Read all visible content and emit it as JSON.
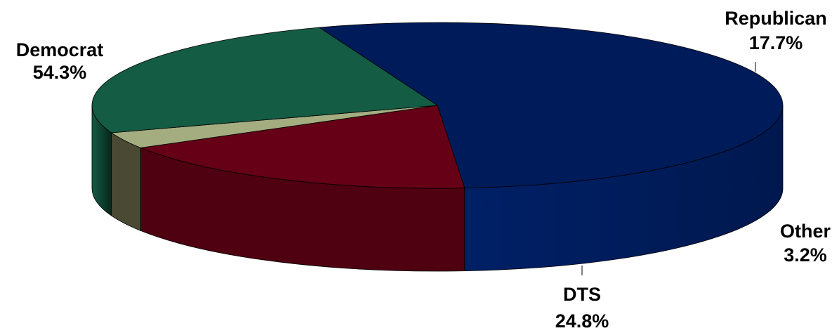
{
  "chart_data": {
    "type": "pie",
    "style": "3d",
    "slices": [
      {
        "label": "Democrat",
        "value": 54.3,
        "value_label": "54.3%",
        "color": "#001b59"
      },
      {
        "label": "Republican",
        "value": 17.7,
        "value_label": "17.7%",
        "color": "#650016"
      },
      {
        "label": "Other",
        "value": 3.2,
        "value_label": "3.2%",
        "color": "#a3ad80"
      },
      {
        "label": "DTS",
        "value": 24.8,
        "value_label": "24.8%",
        "color": "#145c44"
      }
    ],
    "legend": "none"
  }
}
